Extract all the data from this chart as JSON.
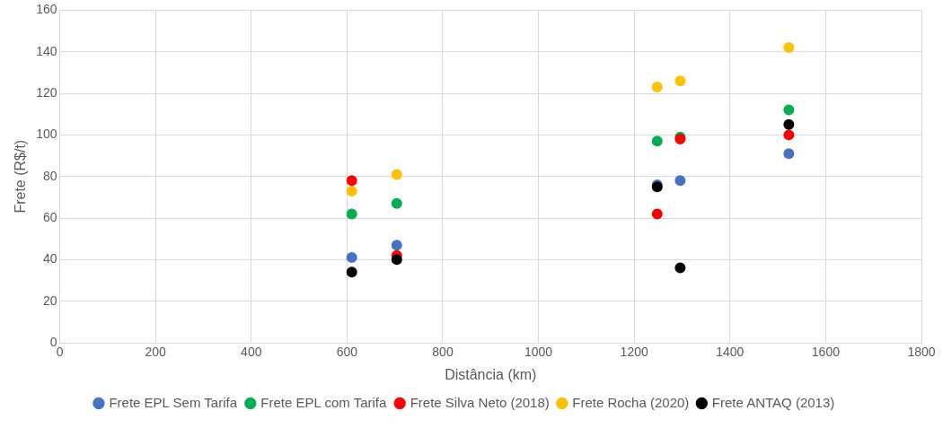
{
  "chart_data": {
    "type": "scatter",
    "xlabel": "Distância (km)",
    "ylabel": "Frete (R$/t)",
    "x": [
      610,
      704,
      1248,
      1296,
      1523
    ],
    "series": [
      {
        "name": "Frete EPL Sem Tarifa",
        "color": "#4472c4",
        "values": [
          41,
          47,
          76,
          78,
          91
        ]
      },
      {
        "name": "Frete EPL com Tarifa",
        "color": "#00b050",
        "values": [
          62,
          67,
          97,
          99,
          112
        ]
      },
      {
        "name": "Frete Silva Neto (2018)",
        "color": "#ff0000",
        "values": [
          78,
          42,
          62,
          98,
          100
        ]
      },
      {
        "name": "Frete Rocha (2020)",
        "color": "#ffc000",
        "values": [
          73,
          81,
          123,
          126,
          142
        ]
      },
      {
        "name": "Frete ANTAQ (2013)",
        "color": "#000000",
        "values": [
          34,
          40,
          75,
          36,
          105
        ]
      }
    ],
    "xlim": [
      0,
      1800
    ],
    "xticks": [
      0,
      200,
      400,
      600,
      800,
      1000,
      1200,
      1400,
      1600,
      1800
    ],
    "ylim": [
      0,
      160
    ],
    "yticks": [
      0,
      20,
      40,
      60,
      80,
      100,
      120,
      140,
      160
    ],
    "grid": true,
    "legend": "bottom",
    "marker": "circle"
  }
}
